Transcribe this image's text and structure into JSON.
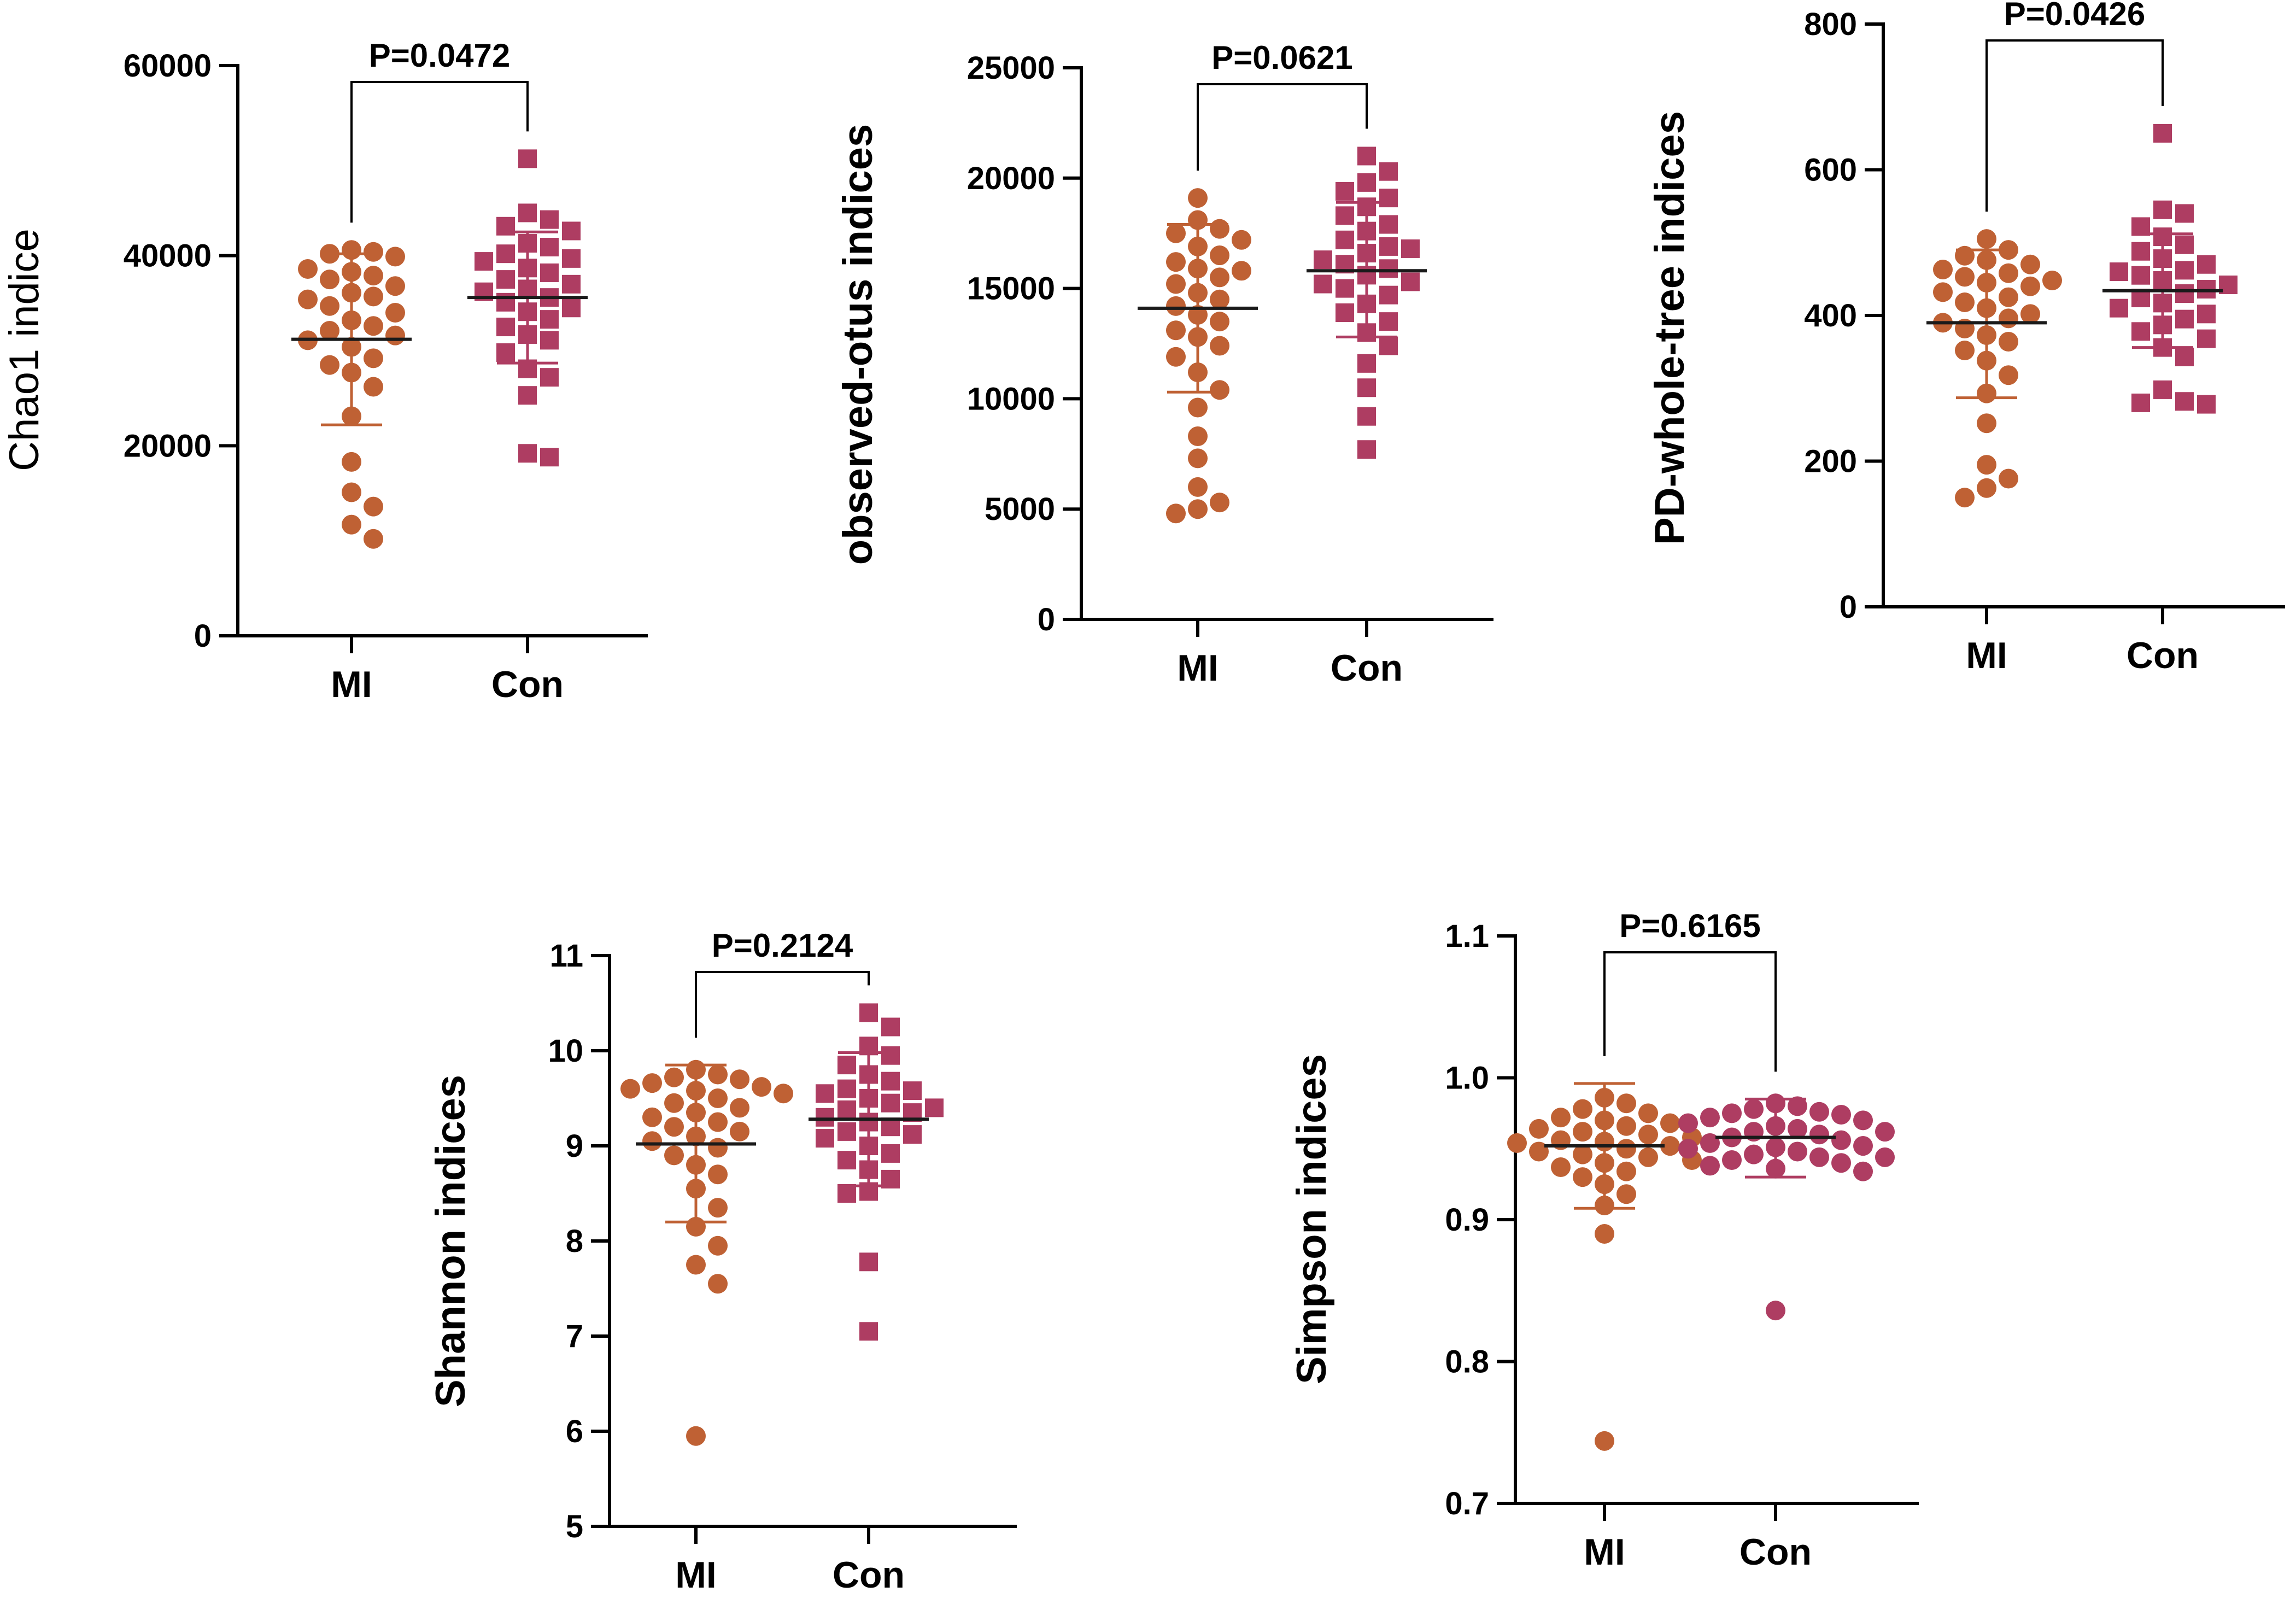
{
  "colors": {
    "mi": "#bf6134",
    "con": "#ae3d62",
    "axis": "#000000"
  },
  "chart_data": [
    {
      "type": "scatter",
      "id": "chao1",
      "title": "",
      "ylabel": "Chao1 indice",
      "ylabel_bold": false,
      "ylim": [
        0,
        60000
      ],
      "yticks": [
        0,
        20000,
        40000,
        60000
      ],
      "ytick_labels": [
        "0",
        "20000",
        "40000",
        "60000"
      ],
      "categories": [
        "MI",
        "Con"
      ],
      "p_value": "P=0.0472",
      "groups": [
        {
          "name": "MI",
          "marker": "circle",
          "mean": 31200,
          "sd_low": 22200,
          "sd_high": 40200,
          "values": [
            40600,
            40200,
            40400,
            39900,
            38600,
            38300,
            37900,
            37500,
            36800,
            36100,
            35700,
            35400,
            34700,
            34000,
            33200,
            32600,
            32100,
            31600,
            31100,
            30400,
            29200,
            28500,
            27700,
            26200,
            23100,
            18300,
            15100,
            13600,
            11700,
            10200
          ]
        },
        {
          "name": "Con",
          "marker": "square",
          "mean": 35600,
          "sd_low": 28700,
          "sd_high": 42500,
          "values": [
            50200,
            44500,
            43800,
            43100,
            42600,
            41300,
            40900,
            40200,
            39700,
            39400,
            38700,
            38200,
            37500,
            37000,
            36500,
            36200,
            35600,
            35100,
            34500,
            34100,
            33300,
            32500,
            31700,
            31100,
            29800,
            28100,
            27200,
            25300,
            19200,
            18800
          ]
        }
      ]
    },
    {
      "type": "scatter",
      "id": "observed-otus",
      "title": "",
      "ylabel": "observed-otus indices",
      "ylabel_bold": true,
      "ylim": [
        0,
        25000
      ],
      "yticks": [
        0,
        5000,
        10000,
        15000,
        20000,
        25000
      ],
      "ytick_labels": [
        "0",
        "5000",
        "10000",
        "15000",
        "20000",
        "25000"
      ],
      "categories": [
        "MI",
        "Con"
      ],
      "p_value": "P=0.0621",
      "groups": [
        {
          "name": "MI",
          "marker": "circle",
          "mean": 14100,
          "sd_low": 10300,
          "sd_high": 17900,
          "values": [
            19100,
            18100,
            17700,
            17500,
            17200,
            16900,
            16500,
            16200,
            15900,
            15500,
            15200,
            14800,
            14500,
            14200,
            13800,
            13500,
            13100,
            12800,
            12400,
            11900,
            11200,
            10400,
            9600,
            8300,
            7300,
            6000,
            5300,
            5000,
            4800,
            15800
          ]
        },
        {
          "name": "Con",
          "marker": "square",
          "mean": 15800,
          "sd_low": 12800,
          "sd_high": 18900,
          "values": [
            21000,
            20300,
            19800,
            19400,
            19100,
            18700,
            18300,
            17900,
            17600,
            17200,
            16900,
            16600,
            16300,
            16100,
            15900,
            15600,
            15300,
            15000,
            14700,
            14300,
            13900,
            13500,
            13000,
            12400,
            11600,
            10500,
            9200,
            7700,
            16800,
            15200
          ]
        }
      ]
    },
    {
      "type": "scatter",
      "id": "pd-whole-tree",
      "title": "",
      "ylabel": "PD-whole-tree indices",
      "ylabel_bold": true,
      "ylim": [
        0,
        800
      ],
      "yticks": [
        0,
        200,
        400,
        600,
        800
      ],
      "ytick_labels": [
        "0",
        "200",
        "400",
        "600",
        "800"
      ],
      "categories": [
        "MI",
        "Con"
      ],
      "p_value": "P=0.0426",
      "groups": [
        {
          "name": "MI",
          "marker": "circle",
          "mean": 390,
          "sd_low": 287,
          "sd_high": 490,
          "values": [
            505,
            490,
            482,
            476,
            470,
            463,
            458,
            453,
            448,
            440,
            432,
            425,
            418,
            410,
            402,
            396,
            390,
            382,
            373,
            364,
            352,
            338,
            318,
            293,
            252,
            195,
            176,
            163,
            150,
            445
          ]
        },
        {
          "name": "Con",
          "marker": "square",
          "mean": 434,
          "sd_low": 356,
          "sd_high": 512,
          "values": [
            650,
            545,
            540,
            522,
            508,
            497,
            488,
            478,
            470,
            462,
            455,
            448,
            442,
            436,
            430,
            424,
            417,
            410,
            402,
            395,
            387,
            378,
            368,
            356,
            343,
            298,
            282,
            280,
            278,
            460
          ]
        }
      ]
    },
    {
      "type": "scatter",
      "id": "shannon",
      "title": "",
      "ylabel": "Shannon indices",
      "ylabel_bold": true,
      "ylim": [
        5,
        11
      ],
      "yticks": [
        5,
        6,
        7,
        8,
        9,
        10,
        11
      ],
      "ytick_labels": [
        "5",
        "6",
        "7",
        "8",
        "9",
        "10",
        "11"
      ],
      "categories": [
        "MI",
        "Con"
      ],
      "p_value": "P=0.2124",
      "groups": [
        {
          "name": "MI",
          "marker": "circle",
          "mean": 9.02,
          "sd_low": 8.2,
          "sd_high": 9.85,
          "values": [
            9.8,
            9.75,
            9.72,
            9.7,
            9.66,
            9.62,
            9.58,
            9.55,
            9.5,
            9.45,
            9.4,
            9.35,
            9.3,
            9.25,
            9.2,
            9.15,
            9.1,
            9.05,
            8.98,
            8.9,
            8.8,
            8.7,
            8.55,
            8.35,
            8.15,
            7.95,
            7.75,
            7.55,
            5.95,
            9.6
          ]
        },
        {
          "name": "Con",
          "marker": "square",
          "mean": 9.28,
          "sd_low": 8.58,
          "sd_high": 9.98,
          "values": [
            10.4,
            10.25,
            10.05,
            9.95,
            9.85,
            9.75,
            9.68,
            9.6,
            9.55,
            9.5,
            9.45,
            9.4,
            9.35,
            9.3,
            9.25,
            9.2,
            9.15,
            9.08,
            9.0,
            8.92,
            8.85,
            8.75,
            8.65,
            8.52,
            8.5,
            7.78,
            7.05,
            9.58,
            9.12,
            9.38
          ]
        }
      ]
    },
    {
      "type": "scatter",
      "id": "simpson",
      "title": "",
      "ylabel": "Simpson indices",
      "ylabel_bold": true,
      "ylim": [
        0.7,
        1.1
      ],
      "yticks": [
        0.7,
        0.8,
        0.9,
        1.0,
        1.1
      ],
      "ytick_labels": [
        "0.7",
        "0.8",
        "0.9",
        "1.0",
        "1.1"
      ],
      "categories": [
        "MI",
        "Con"
      ],
      "p_value": "P=0.6165",
      "groups": [
        {
          "name": "MI",
          "marker": "circle",
          "mean": 0.952,
          "sd_low": 0.908,
          "sd_high": 0.996,
          "values": [
            0.986,
            0.982,
            0.978,
            0.975,
            0.972,
            0.97,
            0.968,
            0.966,
            0.964,
            0.962,
            0.96,
            0.958,
            0.956,
            0.954,
            0.952,
            0.95,
            0.948,
            0.946,
            0.944,
            0.942,
            0.94,
            0.937,
            0.934,
            0.93,
            0.925,
            0.918,
            0.91,
            0.89,
            0.744,
            0.955
          ]
        },
        {
          "name": "Con",
          "marker": "circle",
          "mean": 0.958,
          "sd_low": 0.93,
          "sd_high": 0.985,
          "values": [
            0.982,
            0.98,
            0.978,
            0.976,
            0.974,
            0.972,
            0.97,
            0.968,
            0.966,
            0.964,
            0.962,
            0.96,
            0.958,
            0.956,
            0.954,
            0.952,
            0.95,
            0.948,
            0.946,
            0.944,
            0.942,
            0.94,
            0.938,
            0.936,
            0.934,
            0.836,
            0.975,
            0.962,
            0.951,
            0.944
          ]
        }
      ]
    }
  ]
}
